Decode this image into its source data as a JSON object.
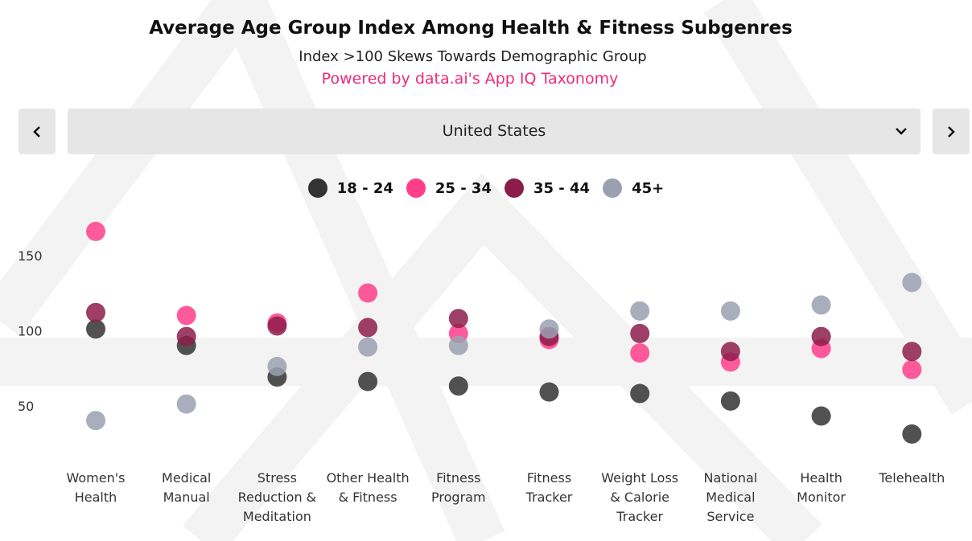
{
  "header": {
    "title": "Average Age Group Index Among Health &  Fitness Subgenres",
    "subtitle": "Index  >100 Skews Towards Demographic Group",
    "source": "Powered by data.ai's App IQ Taxonomy"
  },
  "selector": {
    "value": "United States"
  },
  "chart_data": {
    "type": "scatter",
    "categories": [
      "Women's Health",
      "Medical Manual",
      "Stress Reduction & Meditation",
      "Other Health & Fitness",
      "Fitness Program",
      "Fitness Tracker",
      "Weight Loss & Calorie Tracker",
      "National Medical Service",
      "Health Monitor",
      "Telehealth"
    ],
    "series": [
      {
        "name": "18 - 24",
        "color": "#333333",
        "values": [
          102,
          91,
          70,
          67,
          64,
          60,
          59,
          54,
          44,
          32
        ]
      },
      {
        "name": "25 - 34",
        "color": "#ff3d8b",
        "values": [
          167,
          111,
          106,
          126,
          99,
          95,
          86,
          80,
          89,
          75
        ]
      },
      {
        "name": "35 - 44",
        "color": "#8c1d4b",
        "values": [
          113,
          97,
          104,
          103,
          109,
          97,
          99,
          87,
          97,
          87
        ]
      },
      {
        "name": "45+",
        "color": "#9aa0b2",
        "values": [
          41,
          52,
          77,
          90,
          91,
          102,
          114,
          114,
          118,
          133
        ]
      }
    ],
    "ylim": [
      25,
      175
    ],
    "yticks": [
      50,
      100,
      150
    ],
    "grid": false
  }
}
